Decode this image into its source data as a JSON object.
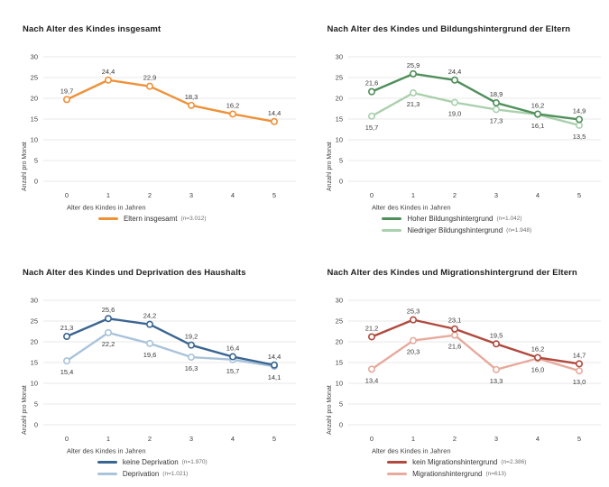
{
  "figure": {
    "y_axis_label": "Anzahl pro Monat",
    "x_axis_label": "Alter des Kindes in Jahren",
    "grid_color": "#e9e9e9",
    "axis_text_color": "#3f3f3f",
    "data_label_color": "#383838"
  },
  "chart_data": [
    {
      "type": "line",
      "title": "Nach Alter des Kindes insgesamt",
      "xlabel": "Alter des Kindes in Jahren",
      "ylabel": "Anzahl pro Monat",
      "x": [
        0,
        1,
        2,
        3,
        4,
        5
      ],
      "ylim": [
        0,
        30
      ],
      "yticks": [
        0,
        5,
        10,
        15,
        20,
        25,
        30
      ],
      "grid": "horizontal",
      "legend_position": "bottom",
      "series": [
        {
          "name": "Eltern insgesamt",
          "n": "(n=3.012)",
          "color": "#ef9138",
          "values": [
            19.7,
            24.4,
            22.9,
            18.3,
            16.2,
            14.4
          ],
          "labels": [
            "19,7",
            "24,4",
            "22,9",
            "18,3",
            "16,2",
            "14,4"
          ],
          "label_position": "above"
        }
      ]
    },
    {
      "type": "line",
      "title": "Nach Alter des Kindes und Bildungshintergrund der Eltern",
      "xlabel": "Alter des Kindes in Jahren",
      "ylabel": "Anzahl pro Monat",
      "x": [
        0,
        1,
        2,
        3,
        4,
        5
      ],
      "ylim": [
        0,
        30
      ],
      "yticks": [
        0,
        5,
        10,
        15,
        20,
        25,
        30
      ],
      "grid": "horizontal",
      "legend_position": "bottom",
      "series": [
        {
          "name": "Hoher Bildungshintergrund",
          "n": "(n=1.042)",
          "color": "#4f8f5a",
          "values": [
            21.6,
            25.9,
            24.4,
            18.9,
            16.2,
            14.9
          ],
          "labels": [
            "21,6",
            "25,9",
            "24,4",
            "18,9",
            "16,2",
            "14,9"
          ],
          "label_position": "above"
        },
        {
          "name": "Niedriger Bildungshintergrund",
          "n": "(n=1.948)",
          "color": "#abd0ae",
          "values": [
            15.7,
            21.3,
            19.0,
            17.3,
            16.1,
            13.5
          ],
          "labels": [
            "15,7",
            "21,3",
            "19,0",
            "17,3",
            "16,1",
            "13,5"
          ],
          "label_position": "below"
        }
      ]
    },
    {
      "type": "line",
      "title": "Nach Alter des Kindes und Deprivation des Haushalts",
      "xlabel": "Alter des Kindes in Jahren",
      "ylabel": "Anzahl pro Monat",
      "x": [
        0,
        1,
        2,
        3,
        4,
        5
      ],
      "ylim": [
        0,
        30
      ],
      "yticks": [
        0,
        5,
        10,
        15,
        20,
        25,
        30
      ],
      "grid": "horizontal",
      "legend_position": "bottom",
      "series": [
        {
          "name": "keine Deprivation",
          "n": "(n=1.970)",
          "color": "#3b6591",
          "values": [
            21.3,
            25.6,
            24.2,
            19.2,
            16.4,
            14.4
          ],
          "labels": [
            "21,3",
            "25,6",
            "24,2",
            "19,2",
            "16,4",
            "14,4"
          ],
          "label_position": "above"
        },
        {
          "name": "Deprivation",
          "n": "(n=1.021)",
          "color": "#a9c3da",
          "values": [
            15.4,
            22.2,
            19.6,
            16.3,
            15.7,
            14.1
          ],
          "labels": [
            "15,4",
            "22,2",
            "19,6",
            "16,3",
            "15,7",
            "14,1"
          ],
          "label_position": "below"
        }
      ]
    },
    {
      "type": "line",
      "title": "Nach Alter des Kindes und Migrationshintergrund der Eltern",
      "xlabel": "Alter des Kindes in Jahren",
      "ylabel": "Anzahl pro Monat",
      "x": [
        0,
        1,
        2,
        3,
        4,
        5
      ],
      "ylim": [
        0,
        30
      ],
      "yticks": [
        0,
        5,
        10,
        15,
        20,
        25,
        30
      ],
      "grid": "horizontal",
      "legend_position": "bottom",
      "series": [
        {
          "name": "kein Migrationshintergrund",
          "n": "(n=2.386)",
          "color": "#b04a3e",
          "values": [
            21.2,
            25.3,
            23.1,
            19.5,
            16.2,
            14.7
          ],
          "labels": [
            "21,2",
            "25,3",
            "23,1",
            "19,5",
            "16,2",
            "14,7"
          ],
          "label_position": "above"
        },
        {
          "name": "Migrationshintergrund",
          "n": "(n=613)",
          "color": "#e7aa9d",
          "values": [
            13.4,
            20.3,
            21.6,
            13.3,
            16.0,
            13.0
          ],
          "labels": [
            "13,4",
            "20,3",
            "21,6",
            "13,3",
            "16,0",
            "13,0"
          ],
          "label_position": "below"
        }
      ]
    }
  ]
}
